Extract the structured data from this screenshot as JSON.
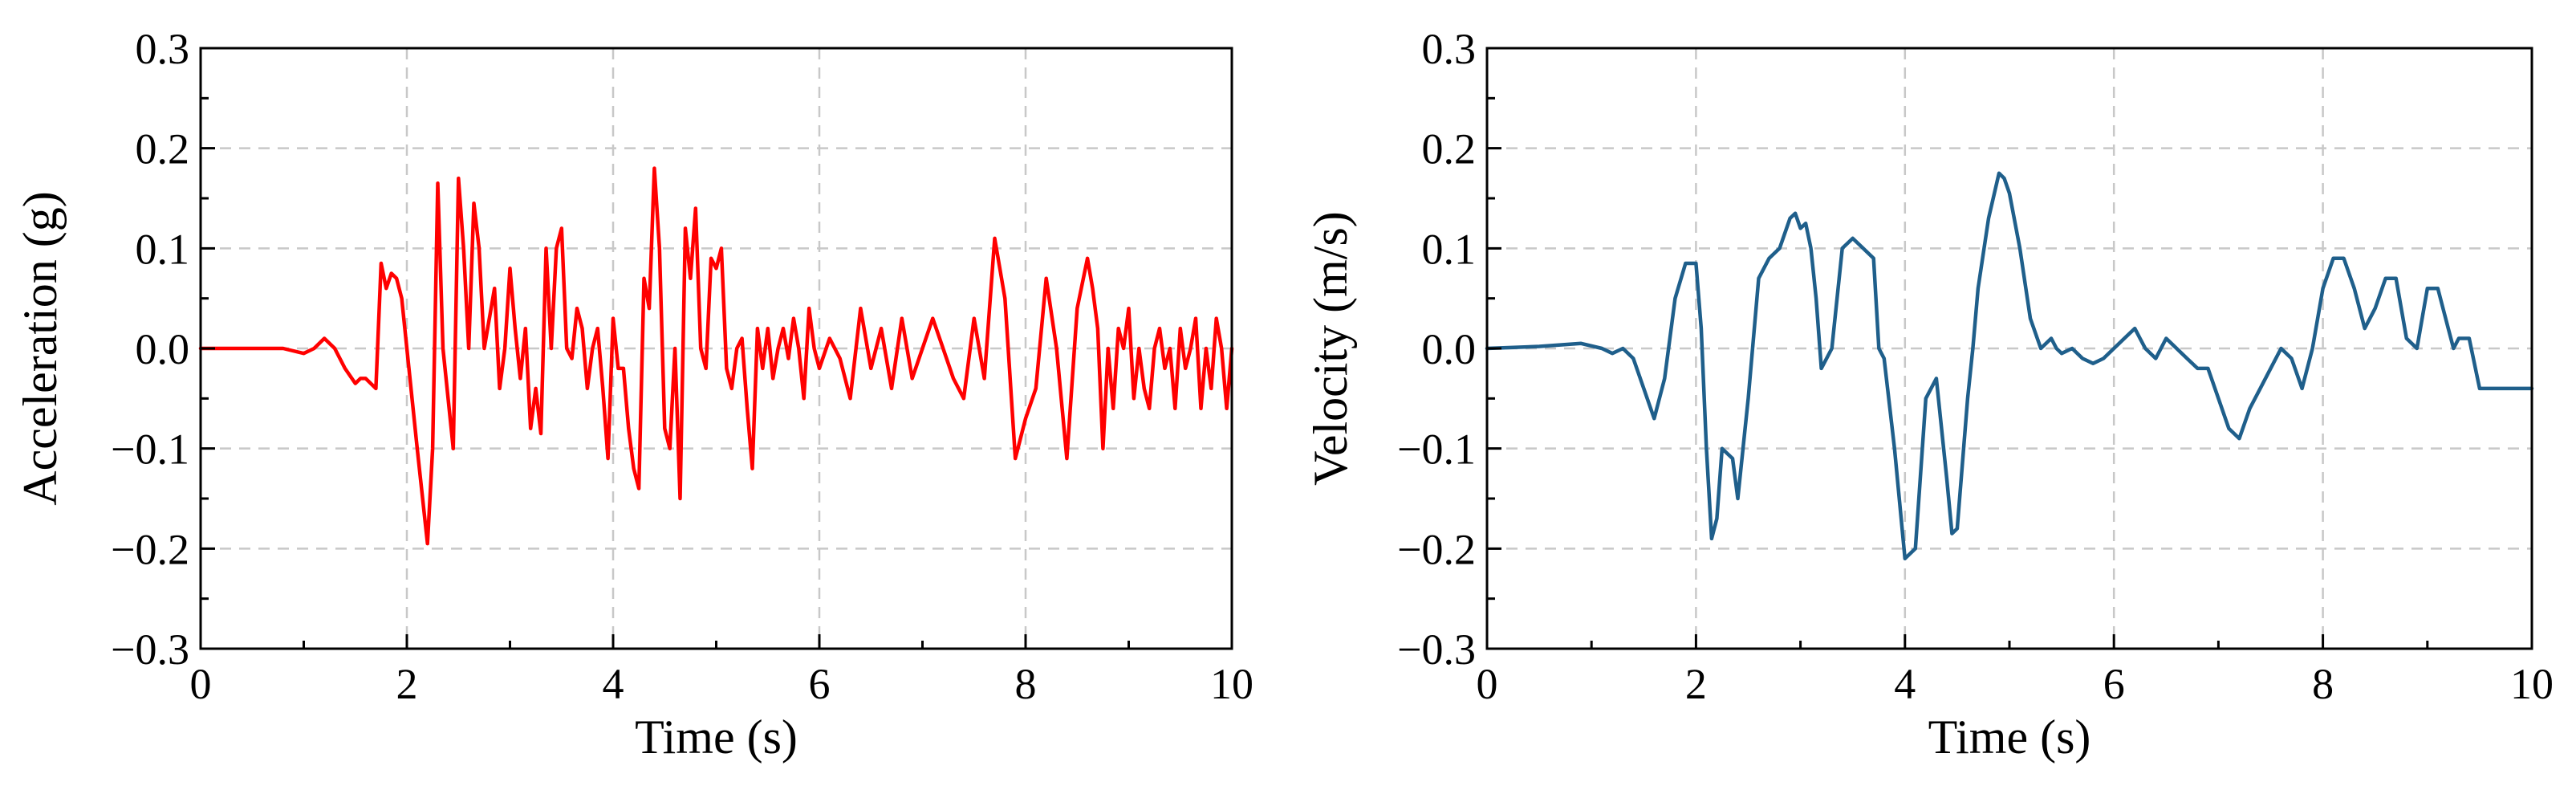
{
  "chart_data": [
    {
      "type": "line",
      "title": "",
      "xlabel": "Time (s)",
      "ylabel": "Acceleration (g)",
      "xlim": [
        0,
        10
      ],
      "ylim": [
        -0.3,
        0.3
      ],
      "xticks": [
        0,
        2,
        4,
        6,
        8,
        10
      ],
      "yticks": [
        -0.3,
        -0.2,
        -0.1,
        0.0,
        0.1,
        0.2,
        0.3
      ],
      "xtick_labels": [
        "0",
        "2",
        "4",
        "6",
        "8",
        "10"
      ],
      "ytick_labels": [
        "−0.3",
        "−0.2",
        "−0.1",
        "0.0",
        "0.1",
        "0.2",
        "0.3"
      ],
      "grid": true,
      "color": "#ff0000",
      "series": [
        {
          "x": [
            0,
            0.8,
            1.0,
            1.1,
            1.2,
            1.3,
            1.4,
            1.5,
            1.55,
            1.6,
            1.7,
            1.75,
            1.8,
            1.85,
            1.9,
            1.95,
            2.0,
            2.1,
            2.2,
            2.25,
            2.3,
            2.35,
            2.45,
            2.5,
            2.55,
            2.6,
            2.65,
            2.7,
            2.75,
            2.85,
            2.9,
            2.95,
            3.0,
            3.05,
            3.1,
            3.15,
            3.2,
            3.25,
            3.3,
            3.35,
            3.4,
            3.45,
            3.5,
            3.55,
            3.6,
            3.65,
            3.7,
            3.75,
            3.8,
            3.85,
            3.9,
            3.95,
            4.0,
            4.05,
            4.1,
            4.15,
            4.2,
            4.25,
            4.3,
            4.35,
            4.4,
            4.45,
            4.5,
            4.55,
            4.6,
            4.65,
            4.7,
            4.75,
            4.8,
            4.85,
            4.9,
            4.95,
            5.0,
            5.05,
            5.1,
            5.15,
            5.2,
            5.25,
            5.3,
            5.35,
            5.4,
            5.45,
            5.5,
            5.55,
            5.6,
            5.65,
            5.7,
            5.75,
            5.8,
            5.85,
            5.9,
            5.95,
            6.0,
            6.1,
            6.2,
            6.3,
            6.4,
            6.5,
            6.6,
            6.7,
            6.8,
            6.9,
            7.0,
            7.1,
            7.2,
            7.3,
            7.4,
            7.5,
            7.6,
            7.7,
            7.8,
            7.9,
            8.0,
            8.1,
            8.2,
            8.3,
            8.4,
            8.5,
            8.6,
            8.65,
            8.7,
            8.75,
            8.8,
            8.85,
            8.9,
            8.95,
            9.0,
            9.05,
            9.1,
            9.15,
            9.2,
            9.25,
            9.3,
            9.35,
            9.4,
            9.45,
            9.5,
            9.55,
            9.6,
            9.65,
            9.7,
            9.75,
            9.8,
            9.85,
            9.9,
            9.95,
            10.0
          ],
          "y": [
            0.0,
            0.0,
            -0.005,
            0.0,
            0.01,
            0.0,
            -0.02,
            -0.035,
            -0.03,
            -0.03,
            -0.04,
            0.085,
            0.06,
            0.075,
            0.07,
            0.05,
            0.0,
            -0.1,
            -0.195,
            -0.1,
            0.165,
            0.0,
            -0.1,
            0.17,
            0.1,
            0.0,
            0.145,
            0.1,
            0.0,
            0.06,
            -0.04,
            0.0,
            0.08,
            0.02,
            -0.03,
            0.02,
            -0.08,
            -0.04,
            -0.085,
            0.1,
            0.0,
            0.1,
            0.12,
            0.0,
            -0.01,
            0.04,
            0.02,
            -0.04,
            0.0,
            0.02,
            -0.04,
            -0.11,
            0.03,
            -0.02,
            -0.02,
            -0.08,
            -0.12,
            -0.14,
            0.07,
            0.04,
            0.18,
            0.1,
            -0.08,
            -0.1,
            0.0,
            -0.15,
            0.12,
            0.07,
            0.14,
            0.0,
            -0.02,
            0.09,
            0.08,
            0.1,
            -0.02,
            -0.04,
            0.0,
            0.01,
            -0.06,
            -0.12,
            0.02,
            -0.02,
            0.02,
            -0.03,
            0.0,
            0.02,
            -0.01,
            0.03,
            0.0,
            -0.05,
            0.04,
            0.0,
            -0.02,
            0.01,
            -0.01,
            -0.05,
            0.04,
            -0.02,
            0.02,
            -0.04,
            0.03,
            -0.03,
            0.0,
            0.03,
            0.0,
            -0.03,
            -0.05,
            0.03,
            -0.03,
            0.11,
            0.05,
            -0.11,
            -0.07,
            -0.04,
            0.07,
            0.0,
            -0.11,
            0.04,
            0.09,
            0.06,
            0.02,
            -0.1,
            0.0,
            -0.06,
            0.02,
            0.0,
            0.04,
            -0.05,
            0.0,
            -0.04,
            -0.06,
            0.0,
            0.02,
            -0.02,
            0.0,
            -0.06,
            0.02,
            -0.02,
            0.0,
            0.03,
            -0.06,
            0.0,
            -0.04,
            0.03,
            0.0,
            -0.06,
            0.0
          ],
          "comment_free_note": ""
        }
      ]
    },
    {
      "type": "line",
      "title": "",
      "xlabel": "Time (s)",
      "ylabel": "Velocity (m/s)",
      "xlim": [
        0,
        10
      ],
      "ylim": [
        -0.3,
        0.3
      ],
      "xticks": [
        0,
        2,
        4,
        6,
        8,
        10
      ],
      "yticks": [
        -0.3,
        -0.2,
        -0.1,
        0.0,
        0.1,
        0.2,
        0.3
      ],
      "xtick_labels": [
        "0",
        "2",
        "4",
        "6",
        "8",
        "10"
      ],
      "ytick_labels": [
        "−0.3",
        "−0.2",
        "−0.1",
        "0.0",
        "0.1",
        "0.2",
        "0.3"
      ],
      "grid": true,
      "color": "#1f5f8b",
      "series": [
        {
          "x": [
            0,
            0.5,
            0.9,
            1.1,
            1.2,
            1.3,
            1.4,
            1.5,
            1.6,
            1.7,
            1.8,
            1.9,
            2.0,
            2.05,
            2.1,
            2.15,
            2.2,
            2.25,
            2.35,
            2.4,
            2.5,
            2.6,
            2.7,
            2.8,
            2.9,
            2.95,
            3.0,
            3.05,
            3.1,
            3.15,
            3.2,
            3.3,
            3.4,
            3.5,
            3.6,
            3.7,
            3.75,
            3.8,
            3.9,
            4.0,
            4.1,
            4.2,
            4.3,
            4.4,
            4.45,
            4.5,
            4.6,
            4.65,
            4.7,
            4.8,
            4.9,
            4.95,
            5.0,
            5.1,
            5.2,
            5.3,
            5.4,
            5.45,
            5.5,
            5.6,
            5.7,
            5.8,
            5.9,
            6.0,
            6.1,
            6.2,
            6.3,
            6.4,
            6.5,
            6.6,
            6.7,
            6.8,
            6.9,
            7.0,
            7.1,
            7.2,
            7.3,
            7.4,
            7.5,
            7.6,
            7.7,
            7.8,
            7.9,
            8.0,
            8.1,
            8.2,
            8.3,
            8.4,
            8.5,
            8.6,
            8.7,
            8.8,
            8.9,
            9.0,
            9.1,
            9.2,
            9.25,
            9.3,
            9.4,
            9.5,
            9.55,
            9.6,
            9.7,
            9.8,
            9.9,
            10.0
          ],
          "y": [
            0.0,
            0.002,
            0.005,
            0.0,
            -0.005,
            0.0,
            -0.01,
            -0.04,
            -0.07,
            -0.03,
            0.05,
            0.085,
            0.085,
            0.02,
            -0.1,
            -0.19,
            -0.17,
            -0.1,
            -0.11,
            -0.15,
            -0.05,
            0.07,
            0.09,
            0.1,
            0.13,
            0.135,
            0.12,
            0.125,
            0.1,
            0.05,
            -0.02,
            0.0,
            0.1,
            0.11,
            0.1,
            0.09,
            0.0,
            -0.01,
            -0.1,
            -0.21,
            -0.2,
            -0.05,
            -0.03,
            -0.13,
            -0.185,
            -0.18,
            -0.05,
            0.0,
            0.06,
            0.13,
            0.175,
            0.17,
            0.155,
            0.1,
            0.03,
            0.0,
            0.01,
            0.0,
            -0.005,
            0.0,
            -0.01,
            -0.015,
            -0.01,
            0.0,
            0.01,
            0.02,
            0.0,
            -0.01,
            0.01,
            0.0,
            -0.01,
            -0.02,
            -0.02,
            -0.05,
            -0.08,
            -0.09,
            -0.06,
            -0.04,
            -0.02,
            0.0,
            -0.01,
            -0.04,
            0.0,
            0.06,
            0.09,
            0.09,
            0.06,
            0.02,
            0.04,
            0.07,
            0.07,
            0.01,
            0.0,
            0.06,
            0.06,
            0.02,
            0.0,
            0.01,
            0.01,
            -0.04,
            -0.04,
            -0.04,
            -0.04,
            -0.04,
            -0.04,
            -0.04
          ],
          "comment_free_note": ""
        }
      ]
    }
  ]
}
